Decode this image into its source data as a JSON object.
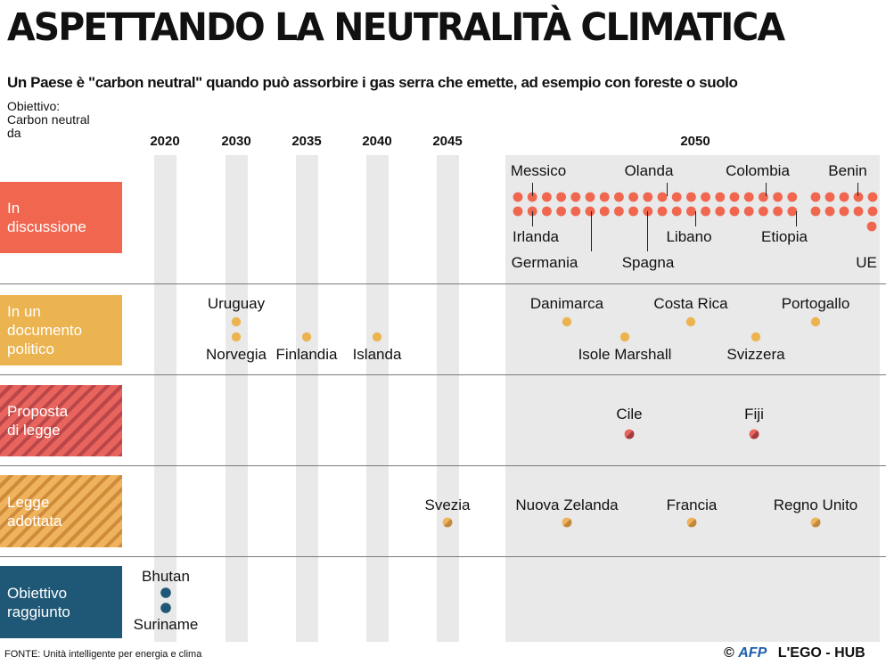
{
  "header": {
    "title": "ASPETTANDO LA NEUTRALITÀ CLIMATICA",
    "subtitle": "Un Paese è \"carbon neutral\" quando può assorbire i gas serra che emette, ad esempio con foreste o suolo",
    "goal_label": "Obiettivo:\nCarbon neutral\nda"
  },
  "colors": {
    "discussione": "#f0664f",
    "documento": "#ecb451",
    "proposta": "#e8645d",
    "legge": "#f0b35d",
    "raggiunto": "#1f5876"
  },
  "chart_data": {
    "type": "scatter",
    "title": "ASPETTANDO LA NEUTRALITÀ CLIMATICA",
    "xlabel": "Obiettivo: Carbon neutral da",
    "ylabel": "",
    "x_ticks": [
      "2020",
      "2030",
      "2035",
      "2040",
      "2045",
      "2050"
    ],
    "categories": [
      {
        "key": "discussione",
        "label": "In\ndiscussione",
        "dots_2050": 41,
        "named": [
          {
            "name": "Messico",
            "year": 2050,
            "label_pos": "top"
          },
          {
            "name": "Olanda",
            "year": 2050,
            "label_pos": "top"
          },
          {
            "name": "Colombia",
            "year": 2050,
            "label_pos": "top"
          },
          {
            "name": "Benin",
            "year": 2050,
            "label_pos": "top"
          },
          {
            "name": "Irlanda",
            "year": 2050,
            "label_pos": "bottom"
          },
          {
            "name": "Germania",
            "year": 2050,
            "label_pos": "bottom"
          },
          {
            "name": "Spagna",
            "year": 2050,
            "label_pos": "bottom"
          },
          {
            "name": "Libano",
            "year": 2050,
            "label_pos": "bottom"
          },
          {
            "name": "Etiopia",
            "year": 2050,
            "label_pos": "bottom"
          },
          {
            "name": "UE",
            "year": 2050,
            "label_pos": "bottom"
          }
        ]
      },
      {
        "key": "documento",
        "label": "In un\ndocumento\npolitico",
        "named": [
          {
            "name": "Uruguay",
            "year": 2030
          },
          {
            "name": "Norvegia",
            "year": 2030
          },
          {
            "name": "Finlandia",
            "year": 2035
          },
          {
            "name": "Islanda",
            "year": 2040
          },
          {
            "name": "Danimarca",
            "year": 2050
          },
          {
            "name": "Costa Rica",
            "year": 2050
          },
          {
            "name": "Portogallo",
            "year": 2050
          },
          {
            "name": "Isole Marshall",
            "year": 2050
          },
          {
            "name": "Svizzera",
            "year": 2050
          }
        ]
      },
      {
        "key": "proposta",
        "label": "Proposta\ndi legge",
        "named": [
          {
            "name": "Cile",
            "year": 2050
          },
          {
            "name": "Fiji",
            "year": 2050
          }
        ]
      },
      {
        "key": "legge",
        "label": "Legge\nadottata",
        "named": [
          {
            "name": "Svezia",
            "year": 2045
          },
          {
            "name": "Nuova Zelanda",
            "year": 2050
          },
          {
            "name": "Francia",
            "year": 2050
          },
          {
            "name": "Regno Unito",
            "year": 2050
          }
        ]
      },
      {
        "key": "raggiunto",
        "label": "Obiettivo\nraggiunto",
        "named": [
          {
            "name": "Bhutan",
            "year": 2020
          },
          {
            "name": "Suriname",
            "year": 2020
          }
        ]
      }
    ]
  },
  "footer": {
    "source": "FONTE: Unità intelligente per energia e clima",
    "copyright": "©",
    "afp": "AFP",
    "hub": "L'EGO - HUB"
  }
}
